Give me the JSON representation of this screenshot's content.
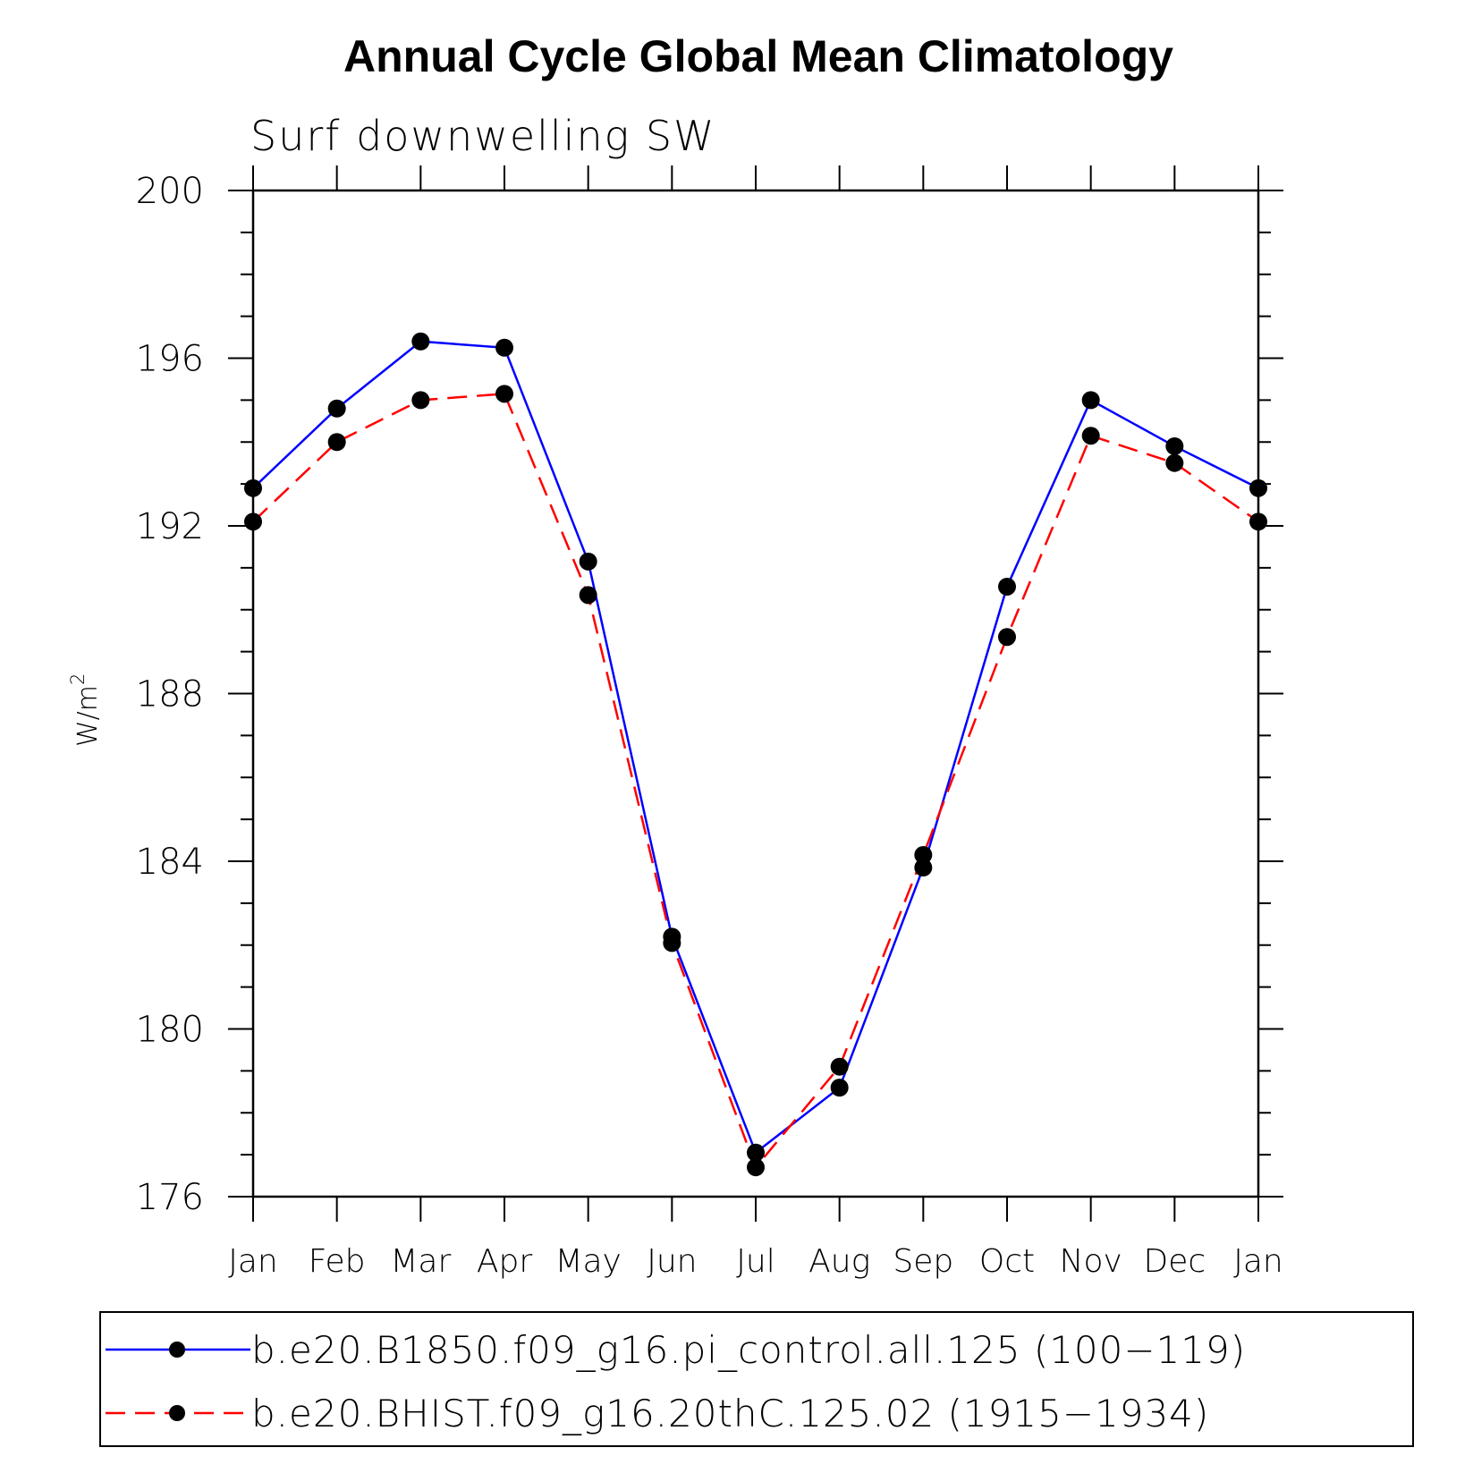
{
  "chart_data": {
    "type": "line",
    "title": "Annual Cycle Global Mean Climatology",
    "subtitle": "Surf downwelling SW",
    "ylabel": "W/m",
    "ylabel_superscript": "2",
    "xlabel": "",
    "categories": [
      "Jan",
      "Feb",
      "Mar",
      "Apr",
      "May",
      "Jun",
      "Jul",
      "Aug",
      "Sep",
      "Oct",
      "Nov",
      "Dec",
      "Jan"
    ],
    "ylim": [
      176,
      200
    ],
    "yticks": [
      176,
      180,
      184,
      188,
      192,
      196,
      200
    ],
    "series": [
      {
        "name": "b.e20.B1850.f09_g16.pi_control.all.125 (100−119)",
        "color": "#0000ff",
        "dash": "solid",
        "values": [
          192.9,
          194.8,
          196.4,
          196.25,
          191.15,
          182.2,
          177.05,
          178.6,
          183.85,
          190.55,
          195.0,
          193.9,
          192.9
        ]
      },
      {
        "name": "b.e20.BHIST.f09_g16.20thC.125.02 (1915−1934)",
        "color": "#ff0000",
        "dash": "dashed",
        "values": [
          192.1,
          194.0,
          195.0,
          195.15,
          190.35,
          182.05,
          176.7,
          179.1,
          184.15,
          189.35,
          194.15,
          193.5,
          192.1
        ]
      }
    ],
    "legend_position": "bottom"
  }
}
